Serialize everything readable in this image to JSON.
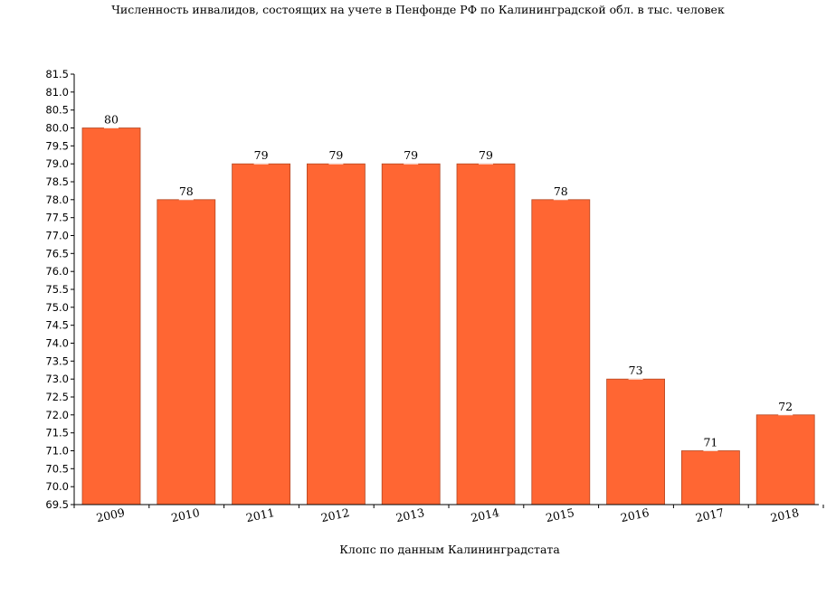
{
  "chart_data": {
    "type": "bar",
    "title": "Численность инвалидов, состоящих на учете в Пенфонде РФ по Калининградской обл. в тыс. человек",
    "xlabel": "Клопс по данным Калининградстата",
    "ylabel": "",
    "categories": [
      "2009",
      "2010",
      "2011",
      "2012",
      "2013",
      "2014",
      "2015",
      "2016",
      "2017",
      "2018"
    ],
    "values": [
      80,
      78,
      79,
      79,
      79,
      79,
      78,
      73,
      71,
      72
    ],
    "data_labels": [
      "80",
      "78",
      "79",
      "79",
      "79",
      "79",
      "78",
      "73",
      "71",
      "72"
    ],
    "ylim": [
      69.5,
      81.5
    ],
    "ytick_step": 0.5,
    "yticks": [
      "69.5",
      "70.0",
      "70.5",
      "71.0",
      "71.5",
      "72.0",
      "72.5",
      "73.0",
      "73.5",
      "74.0",
      "74.5",
      "75.0",
      "75.5",
      "76.0",
      "76.5",
      "77.0",
      "77.5",
      "78.0",
      "78.5",
      "79.0",
      "79.5",
      "80.0",
      "80.5",
      "81.0",
      "81.5"
    ],
    "grid": false,
    "legend": "none",
    "bar_color": "#ff6633",
    "bar_edge_color": "#b34722"
  }
}
